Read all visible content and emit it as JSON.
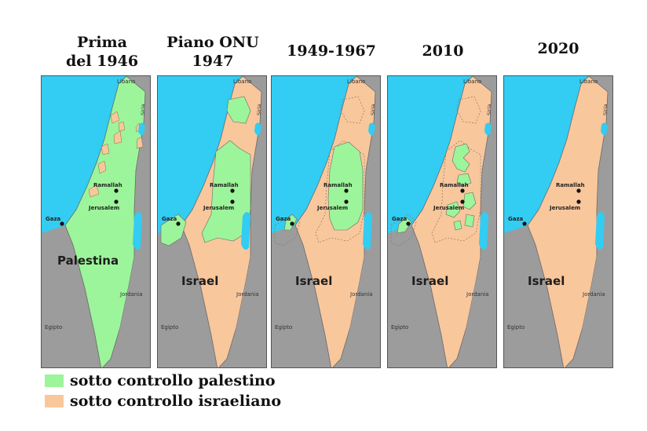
{
  "titles": {
    "t1": "Prima\ndel 1946",
    "t2": "Piano ONU\n1947",
    "t3": "1949-1967",
    "t4": "2010",
    "t5": "2020"
  },
  "places": {
    "lebanon": "Libano",
    "syria": "Siria",
    "ramallah": "Ramallah",
    "jerusalem": "Jerusalem",
    "gaza": "Gaza",
    "jordan": "Jordania",
    "egypt": "Egipto"
  },
  "territory": {
    "palestine": "Palestina",
    "israel": "Israel"
  },
  "legend": {
    "palestinian": "sotto controllo palestino",
    "israeli": "sotto controllo israeliano"
  },
  "colors": {
    "palestinian": "#9cf59a",
    "israeli": "#f9c79c",
    "sea": "#33ccf2",
    "neighbors": "#9c9c9c"
  }
}
